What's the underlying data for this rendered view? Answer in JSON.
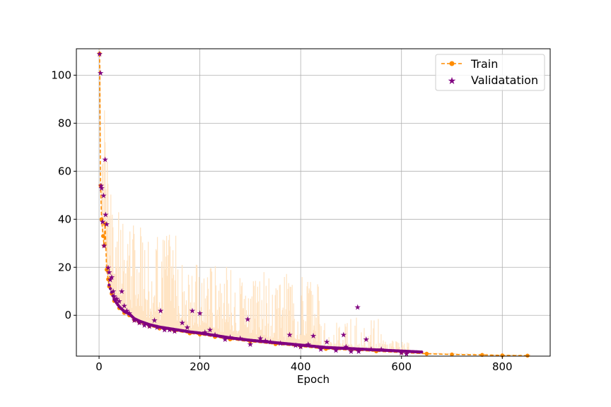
{
  "chart_data": {
    "type": "line",
    "title": "",
    "xlabel": "Epoch",
    "ylabel": "",
    "xlim": [
      -45,
      895
    ],
    "ylim": [
      -17,
      111
    ],
    "x_ticks": [
      0,
      200,
      400,
      600,
      800
    ],
    "y_ticks": [
      0,
      20,
      40,
      60,
      80,
      100
    ],
    "grid": true,
    "legend_position": "top-right",
    "colors": {
      "train": "#ff8c00",
      "train_band": "#ffe4c4",
      "validation": "#800080",
      "grid": "#b0b0b0"
    },
    "series": [
      {
        "name": "Train",
        "style": "dashed-line-with-circle-markers",
        "x": [
          1,
          3,
          5,
          8,
          10,
          12,
          15,
          18,
          20,
          25,
          30,
          40,
          50,
          60,
          70,
          80,
          100,
          120,
          150,
          180,
          200,
          230,
          260,
          300,
          350,
          400,
          450,
          500,
          550,
          600,
          650,
          700,
          760,
          800,
          850
        ],
        "y": [
          109,
          54,
          40,
          33,
          29,
          38,
          19,
          15,
          12,
          9,
          6,
          3,
          1,
          0,
          -2,
          -3,
          -4.5,
          -5.5,
          -6.5,
          -7.5,
          -8,
          -9,
          -10,
          -11,
          -12,
          -13,
          -14,
          -14.5,
          -15,
          -15.5,
          -16,
          -16.3,
          -16.5,
          -16.7,
          -16.8
        ]
      },
      {
        "name": "Validatation",
        "style": "star-markers",
        "x": [
          1,
          3,
          4,
          5,
          7,
          9,
          10,
          12,
          13,
          15,
          18,
          20,
          22,
          25,
          28,
          30,
          35,
          40,
          45,
          50,
          55,
          60,
          70,
          80,
          90,
          100,
          110,
          115,
          122,
          130,
          140,
          150,
          165,
          175,
          185,
          200,
          210,
          220,
          230,
          250,
          260,
          280,
          295,
          300,
          320,
          330,
          340,
          360,
          378,
          390,
          400,
          415,
          425,
          440,
          452,
          470,
          485,
          490,
          500,
          513,
          515,
          530,
          540,
          560,
          600,
          610
        ],
        "y": [
          109,
          101,
          54,
          53,
          39,
          50,
          29,
          65,
          42,
          38,
          20,
          18,
          15,
          16,
          10,
          8,
          7,
          6,
          10,
          4,
          2,
          1,
          -2,
          -3,
          -4,
          -4.5,
          -2,
          -5,
          2,
          -6,
          -6,
          -6.5,
          -3,
          -5,
          2,
          1,
          -7,
          -6,
          -8,
          -10,
          -9,
          -9.5,
          -1.5,
          -12,
          -9.5,
          -10.5,
          -11,
          -11.5,
          -8,
          -12.5,
          -13,
          -12,
          -8.5,
          -14,
          -11,
          -14.5,
          -8,
          -13,
          -15,
          3.5,
          -15,
          -10,
          -14,
          -14,
          -15.5,
          -16
        ]
      }
    ],
    "legend": [
      "Train",
      "Validatation"
    ]
  }
}
